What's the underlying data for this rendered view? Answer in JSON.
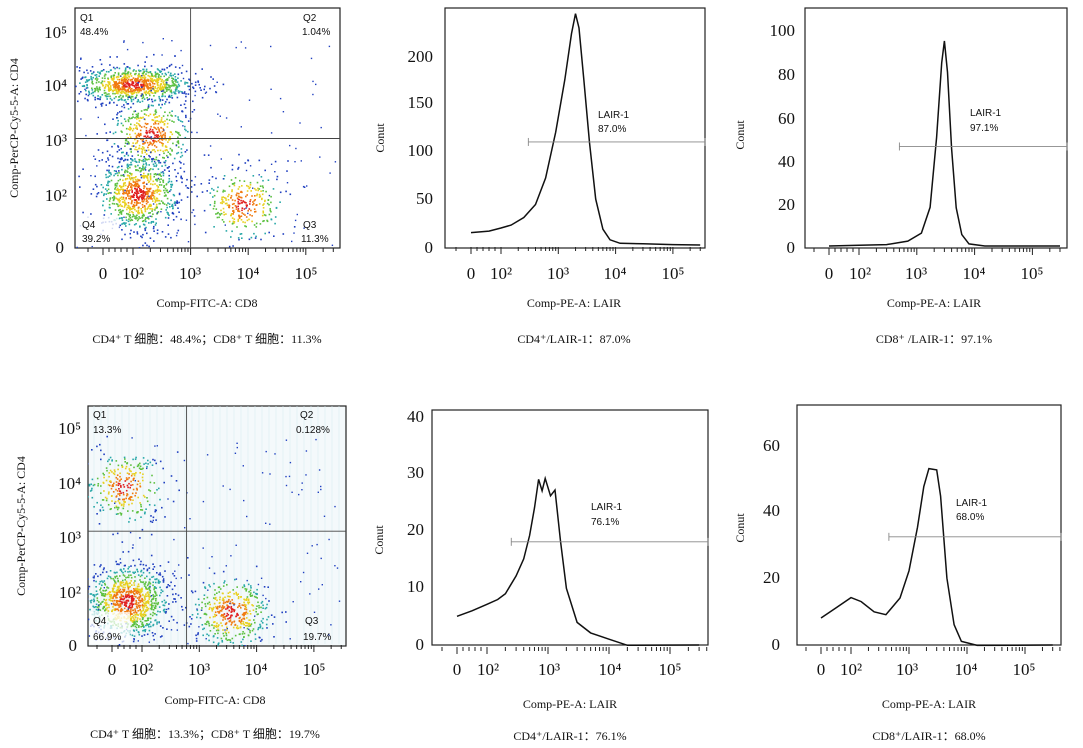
{
  "chart_data": [
    {
      "type": "scatter",
      "xlabel": "Comp-FITC-A: CD8",
      "ylabel": "Comp-PerCP-Cy5-5-A: CD4",
      "caption": "CD4⁺ T 细胞：48.4%；CD8⁺ T 细胞：11.3%",
      "x_ticks": [
        "0",
        "10²",
        "10³",
        "10⁴",
        "10⁵"
      ],
      "y_ticks": [
        "0",
        "10²",
        "10³",
        "10⁴",
        "10⁵"
      ],
      "quadrants": [
        {
          "name": "Q1",
          "value": "48.4%"
        },
        {
          "name": "Q2",
          "value": "1.04%"
        },
        {
          "name": "Q3",
          "value": "11.3%"
        },
        {
          "name": "Q4",
          "value": "39.2%"
        }
      ],
      "gate_x": 1000,
      "gate_y": 1000,
      "populations": [
        {
          "x": 100,
          "y": 10000,
          "n": 900
        },
        {
          "x": 200,
          "y": 1200,
          "n": 450
        },
        {
          "x": 120,
          "y": 100,
          "n": 850
        },
        {
          "x": 8000,
          "y": 80,
          "n": 300
        }
      ]
    },
    {
      "type": "line",
      "xlabel": "Comp-PE-A: LAIR",
      "ylabel": "Conut",
      "caption": "CD4⁺/LAIR-1：87.0%",
      "x_ticks": [
        "0",
        "10²",
        "10³",
        "10⁴",
        "10⁵"
      ],
      "y_ticks": [
        "0",
        "50",
        "100",
        "150",
        "200"
      ],
      "ylim": [
        0,
        230
      ],
      "gate": {
        "label": "LAIR-1",
        "value": "87.0%",
        "x_start": 300,
        "level": 100
      },
      "curve": [
        [
          -200,
          8
        ],
        [
          -100,
          10
        ],
        [
          0,
          12
        ],
        [
          60,
          14
        ],
        [
          100,
          16
        ],
        [
          150,
          20
        ],
        [
          250,
          26
        ],
        [
          400,
          40
        ],
        [
          600,
          65
        ],
        [
          900,
          110
        ],
        [
          1300,
          160
        ],
        [
          1700,
          205
        ],
        [
          2000,
          225
        ],
        [
          2300,
          210
        ],
        [
          2800,
          160
        ],
        [
          3500,
          100
        ],
        [
          4500,
          45
        ],
        [
          6000,
          15
        ],
        [
          8000,
          5
        ],
        [
          12000,
          2
        ],
        [
          30000,
          1
        ],
        [
          100000,
          0
        ],
        [
          300000,
          0
        ]
      ]
    },
    {
      "type": "line",
      "xlabel": "Comp-PE-A: LAIR",
      "ylabel": "Conut",
      "caption": "CD8⁺ /LAIR-1：97.1%",
      "x_ticks": [
        "0",
        "10²",
        "10³",
        "10⁴",
        "10⁵"
      ],
      "y_ticks": [
        "0",
        "20",
        "40",
        "60",
        "80",
        "100"
      ],
      "ylim": [
        0,
        110
      ],
      "gate": {
        "label": "LAIR-1",
        "value": "97.1%",
        "x_start": 500,
        "level": 46
      },
      "curve": [
        [
          -300,
          0
        ],
        [
          0,
          0
        ],
        [
          100,
          0.5
        ],
        [
          300,
          1
        ],
        [
          700,
          2
        ],
        [
          1200,
          6
        ],
        [
          1700,
          18
        ],
        [
          2200,
          50
        ],
        [
          2700,
          85
        ],
        [
          3000,
          95
        ],
        [
          3400,
          80
        ],
        [
          4000,
          45
        ],
        [
          4800,
          18
        ],
        [
          6000,
          5
        ],
        [
          8000,
          1
        ],
        [
          15000,
          0
        ],
        [
          300000,
          0
        ]
      ]
    },
    {
      "type": "scatter",
      "xlabel": "Comp-FITC-A: CD8",
      "ylabel": "Comp-PerCP-Cy5-5-A: CD4",
      "caption": "CD4⁺ T 细胞：13.3%；CD8⁺ T 细胞：19.7%",
      "x_ticks": [
        "0",
        "10²",
        "10³",
        "10⁴",
        "10⁵"
      ],
      "y_ticks": [
        "0",
        "10²",
        "10³",
        "10⁴",
        "10⁵"
      ],
      "quadrants": [
        {
          "name": "Q1",
          "value": "13.3%"
        },
        {
          "name": "Q2",
          "value": "0.128%"
        },
        {
          "name": "Q3",
          "value": "19.7%"
        },
        {
          "name": "Q4",
          "value": "66.9%"
        }
      ],
      "gate_x": 600,
      "gate_y": 1200,
      "populations": [
        {
          "x": 40,
          "y": 8000,
          "n": 300
        },
        {
          "x": 50,
          "y": 80,
          "n": 1000
        },
        {
          "x": 3500,
          "y": 60,
          "n": 450
        }
      ]
    },
    {
      "type": "line",
      "xlabel": "Comp-PE-A: LAIR",
      "ylabel": "Conut",
      "caption": "CD4⁺/LAIR-1：76.1%",
      "x_ticks": [
        "0",
        "10²",
        "10³",
        "10⁴",
        "10⁵"
      ],
      "y_ticks": [
        "0",
        "10",
        "20",
        "30",
        "40"
      ],
      "ylim": [
        0,
        41
      ],
      "gate": {
        "label": "LAIR-1",
        "value": "76.1%",
        "x_start": 250,
        "level": 18
      },
      "curve": [
        [
          -300,
          3
        ],
        [
          -200,
          4
        ],
        [
          -100,
          4
        ],
        [
          0,
          5
        ],
        [
          50,
          6
        ],
        [
          100,
          7
        ],
        [
          150,
          8
        ],
        [
          200,
          9
        ],
        [
          300,
          12
        ],
        [
          400,
          15
        ],
        [
          500,
          19
        ],
        [
          600,
          24
        ],
        [
          700,
          29
        ],
        [
          800,
          27
        ],
        [
          900,
          29
        ],
        [
          1100,
          26
        ],
        [
          1300,
          27
        ],
        [
          1600,
          18
        ],
        [
          2000,
          10
        ],
        [
          3000,
          4
        ],
        [
          5000,
          2
        ],
        [
          10000,
          1
        ],
        [
          20000,
          0
        ],
        [
          300000,
          0
        ]
      ]
    },
    {
      "type": "line",
      "xlabel": "Comp-PE-A: LAIR",
      "ylabel": "Conut",
      "caption": "CD8⁺/LAIR-1：68.0%",
      "x_ticks": [
        "0",
        "10²",
        "10³",
        "10⁴",
        "10⁵"
      ],
      "y_ticks": [
        "0",
        "20",
        "40",
        "60"
      ],
      "ylim": [
        0,
        71
      ],
      "gate": {
        "label": "LAIR-1",
        "value": "68.0%",
        "x_start": 450,
        "level": 32
      },
      "curve": [
        [
          -500,
          18
        ],
        [
          -400,
          9
        ],
        [
          -300,
          6
        ],
        [
          -150,
          7
        ],
        [
          0,
          8
        ],
        [
          50,
          11
        ],
        [
          100,
          14
        ],
        [
          150,
          13
        ],
        [
          250,
          10
        ],
        [
          400,
          9
        ],
        [
          700,
          14
        ],
        [
          1000,
          22
        ],
        [
          1400,
          35
        ],
        [
          1800,
          47
        ],
        [
          2200,
          52
        ],
        [
          3000,
          52
        ],
        [
          3500,
          44
        ],
        [
          4500,
          20
        ],
        [
          6000,
          6
        ],
        [
          8000,
          1
        ],
        [
          15000,
          0
        ],
        [
          300000,
          0
        ]
      ]
    }
  ]
}
